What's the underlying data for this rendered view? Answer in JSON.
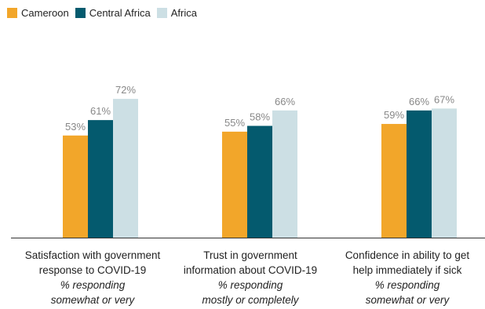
{
  "chart_data": {
    "type": "bar",
    "legend": [
      {
        "name": "Cameroon",
        "color": "#F2A62A"
      },
      {
        "name": "Central Africa",
        "color": "#045A6E"
      },
      {
        "name": "Africa",
        "color": "#CCDFE4"
      }
    ],
    "legend_position": "top-left",
    "categories": [
      {
        "line1": "Satisfaction with government",
        "line2": "response to COVID-19",
        "sub1": "% responding",
        "sub2": "somewhat or very"
      },
      {
        "line1": "Trust in government",
        "line2": "information about COVID-19",
        "sub1": "% responding",
        "sub2": "mostly or completely"
      },
      {
        "line1": "Confidence in ability to get",
        "line2": "help immediately if sick",
        "sub1": "% responding",
        "sub2": "somewhat or very"
      }
    ],
    "series": [
      {
        "name": "Cameroon",
        "values": [
          53,
          55,
          59
        ],
        "labels": [
          "53%",
          "55%",
          "59%"
        ]
      },
      {
        "name": "Central Africa",
        "values": [
          61,
          58,
          66
        ],
        "labels": [
          "61%",
          "58%",
          "66%"
        ]
      },
      {
        "name": "Africa",
        "values": [
          72,
          66,
          67
        ],
        "labels": [
          "72%",
          "66%",
          "67%"
        ]
      }
    ],
    "ylim": [
      0,
      100
    ],
    "grid": false,
    "value_label_color": "#888888"
  }
}
